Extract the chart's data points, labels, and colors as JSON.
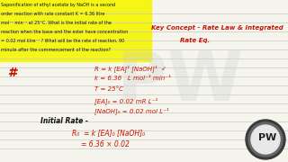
{
  "bg_color": "#f0efe8",
  "question_lines": [
    "Saponification of ethyl acetate by NaOH is a second",
    "order reaction with rate constant K = 6.36 litre",
    "mol⁻¹ min⁻¹ at 25°C. What is the initial rate of the",
    "reaction when the base and the ester have concentration",
    "= 0.02 mol litre⁻¹ ? What will be the rate of reaction, 90",
    "minute after the commencement of the reaction?"
  ],
  "key_concept_line1": "Key Concept - Rate Law & Integrated",
  "key_concept_line2": "Rate Eq.",
  "hash": "#",
  "eqn_lines": [
    "R = k [EA]¹ [NaOH]¹  ✓",
    "k = 6.36   L mol⁻¹ min⁻¹",
    "T = 25°C",
    "[EA]₀ = 0.02 mR L⁻¹",
    "[NaOH]₀ = 0.02 mol L⁻¹"
  ],
  "initial_rate_heading": "Initial Rate -",
  "initial_rate_eq1": "R₀  = k [EA]₀ [NaOH]₀",
  "initial_rate_eq2": "= 6.36 × 0.02",
  "pw_text": "PW",
  "yellow_color": "#f5f500",
  "red_color": "#cc1100",
  "line_color": "#c8c8c8",
  "notebook_bg": "#f5f5ee",
  "pw_circle_color": "#3a3a3a",
  "pw_ring_color": "#888888"
}
